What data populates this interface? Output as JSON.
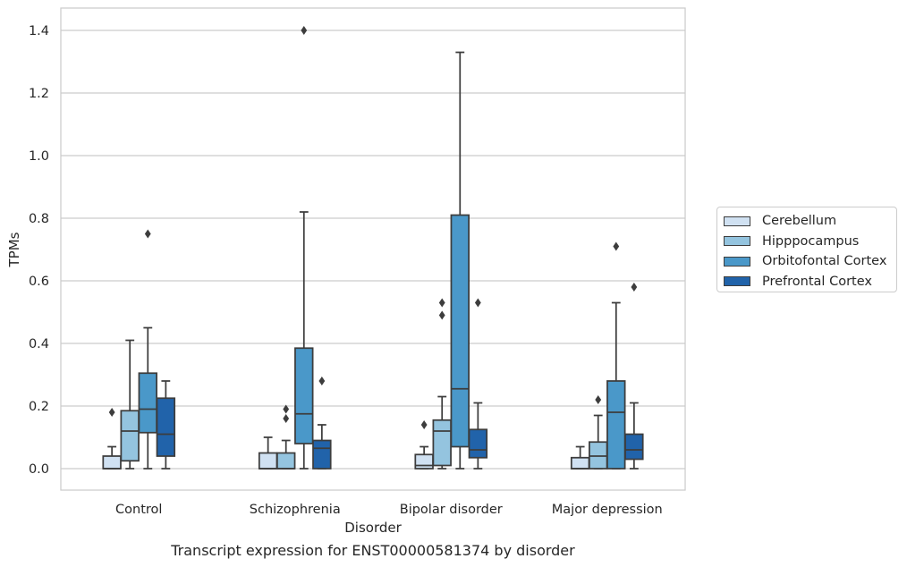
{
  "caption": "Transcript expression for ENST00000581374 by disorder",
  "chart_data": {
    "type": "box",
    "xlabel": "Disorder",
    "ylabel": "TPMs",
    "ylim": [
      -0.07,
      1.47
    ],
    "yticks": [
      0.0,
      0.2,
      0.4,
      0.6,
      0.8,
      1.0,
      1.2,
      1.4
    ],
    "ytick_labels": [
      "0.0",
      "0.2",
      "0.4",
      "0.6",
      "0.8",
      "1.0",
      "1.2",
      "1.4"
    ],
    "grid": "horizontal",
    "legend_position": "right",
    "categories": [
      "Control",
      "Schizophrenia",
      "Bipolar disorder",
      "Major depression"
    ],
    "series": [
      {
        "name": "Cerebellum",
        "color": "#d0e1f2",
        "boxes": [
          {
            "low": 0.0,
            "q1": 0.0,
            "median": 0.0,
            "q3": 0.04,
            "high": 0.07,
            "outliers": [
              0.18
            ]
          },
          {
            "low": 0.0,
            "q1": 0.0,
            "median": 0.0,
            "q3": 0.05,
            "high": 0.1,
            "outliers": []
          },
          {
            "low": 0.0,
            "q1": 0.0,
            "median": 0.01,
            "q3": 0.045,
            "high": 0.07,
            "outliers": [
              0.14
            ]
          },
          {
            "low": 0.0,
            "q1": 0.0,
            "median": 0.0,
            "q3": 0.035,
            "high": 0.07,
            "outliers": []
          }
        ]
      },
      {
        "name": "Hipppocampus",
        "color": "#94c4df",
        "boxes": [
          {
            "low": 0.0,
            "q1": 0.025,
            "median": 0.12,
            "q3": 0.185,
            "high": 0.41,
            "outliers": []
          },
          {
            "low": 0.0,
            "q1": 0.0,
            "median": 0.0,
            "q3": 0.05,
            "high": 0.09,
            "outliers": [
              0.16,
              0.19
            ]
          },
          {
            "low": 0.0,
            "q1": 0.01,
            "median": 0.12,
            "q3": 0.155,
            "high": 0.23,
            "outliers": [
              0.49,
              0.53
            ]
          },
          {
            "low": 0.0,
            "q1": 0.0,
            "median": 0.04,
            "q3": 0.085,
            "high": 0.17,
            "outliers": [
              0.22
            ]
          }
        ]
      },
      {
        "name": "Orbitofontal Cortex",
        "color": "#4a98c9",
        "boxes": [
          {
            "low": 0.0,
            "q1": 0.115,
            "median": 0.19,
            "q3": 0.305,
            "high": 0.45,
            "outliers": [
              0.75
            ]
          },
          {
            "low": 0.0,
            "q1": 0.08,
            "median": 0.175,
            "q3": 0.385,
            "high": 0.82,
            "outliers": [
              1.4
            ]
          },
          {
            "low": 0.0,
            "q1": 0.07,
            "median": 0.255,
            "q3": 0.81,
            "high": 1.33,
            "outliers": []
          },
          {
            "low": 0.0,
            "q1": 0.0,
            "median": 0.18,
            "q3": 0.28,
            "high": 0.53,
            "outliers": [
              0.71
            ]
          }
        ]
      },
      {
        "name": "Prefrontal Cortex",
        "color": "#2163aa",
        "boxes": [
          {
            "low": 0.0,
            "q1": 0.04,
            "median": 0.11,
            "q3": 0.225,
            "high": 0.28,
            "outliers": []
          },
          {
            "low": 0.0,
            "q1": 0.0,
            "median": 0.065,
            "q3": 0.09,
            "high": 0.14,
            "outliers": [
              0.28
            ]
          },
          {
            "low": 0.0,
            "q1": 0.035,
            "median": 0.06,
            "q3": 0.125,
            "high": 0.21,
            "outliers": [
              0.53
            ]
          },
          {
            "low": 0.0,
            "q1": 0.03,
            "median": 0.06,
            "q3": 0.11,
            "high": 0.21,
            "outliers": [
              0.58
            ]
          }
        ]
      }
    ]
  }
}
